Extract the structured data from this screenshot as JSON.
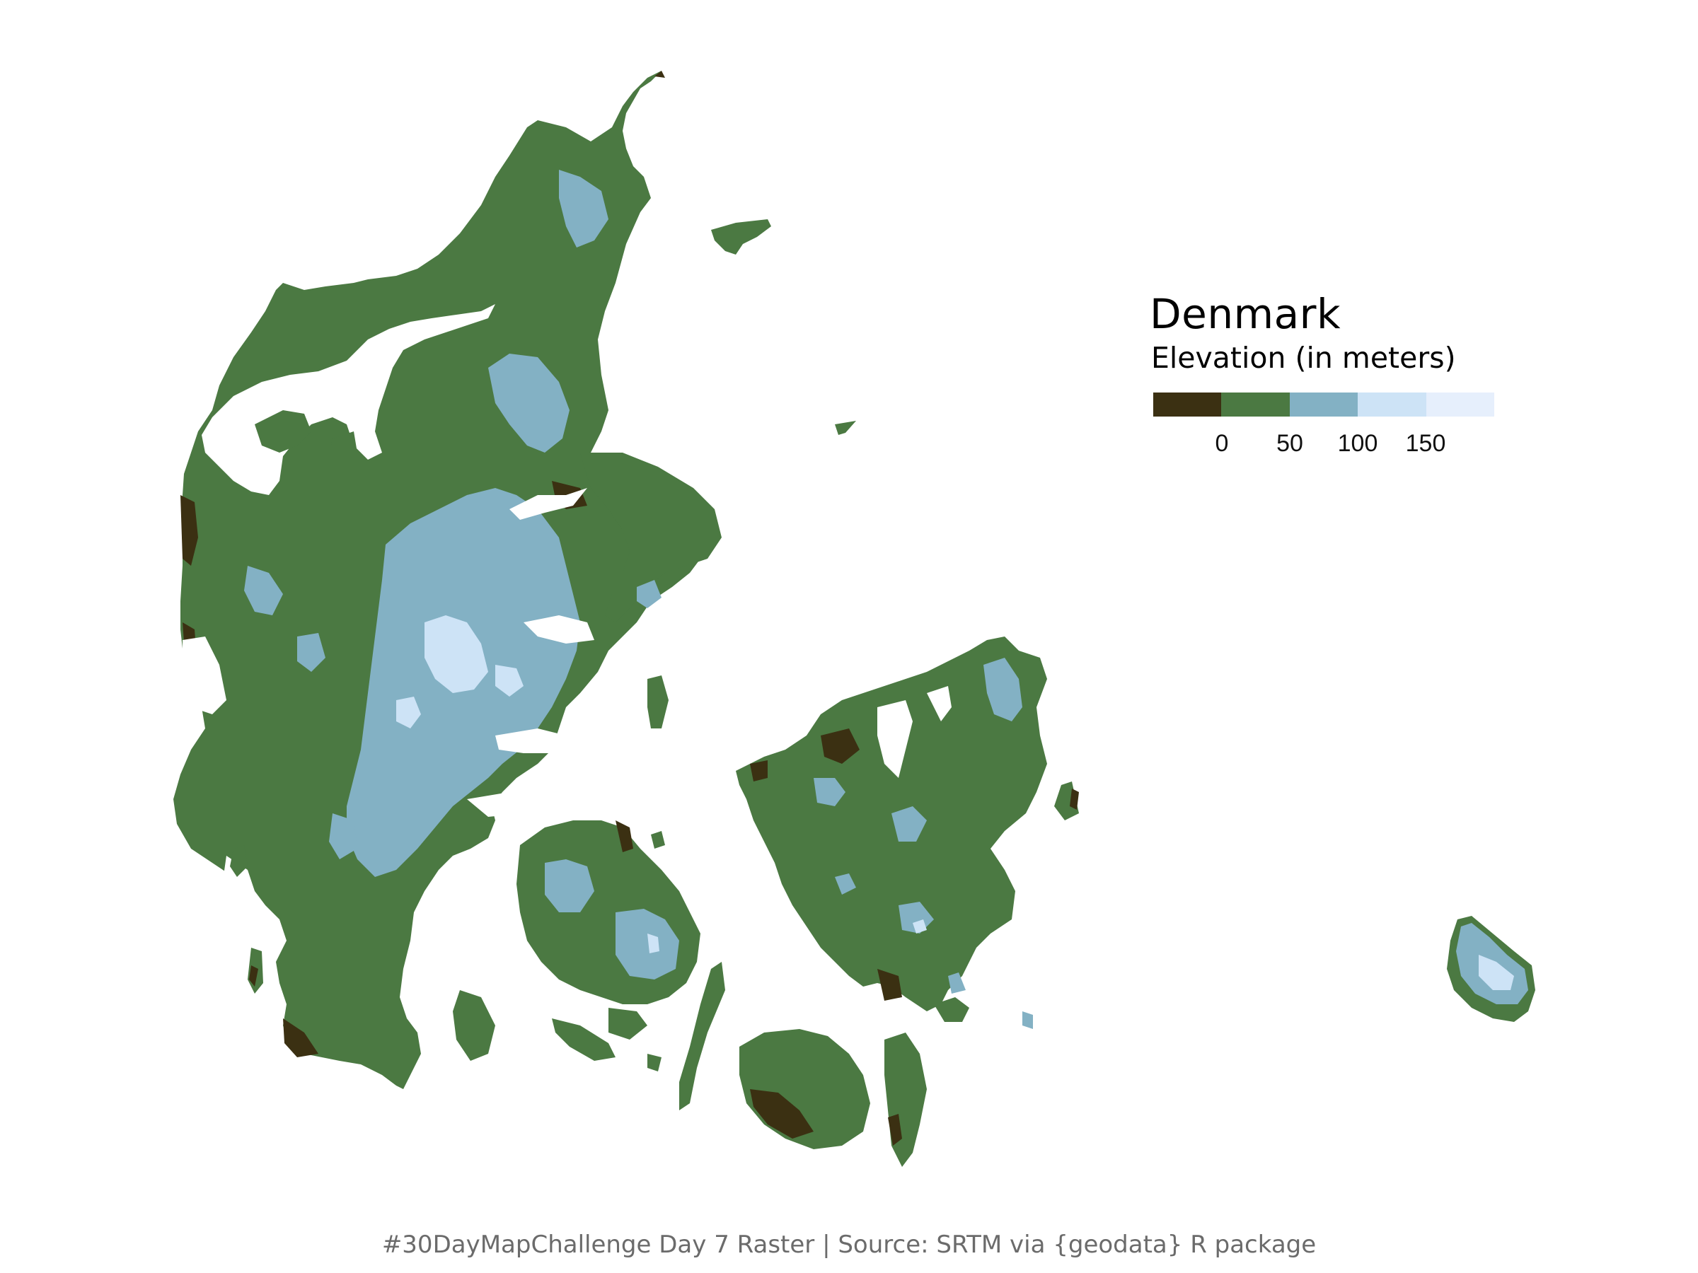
{
  "map": {
    "name": "Denmark elevation raster",
    "colors": {
      "background": "#ffffff",
      "lowland": "#3b3012",
      "low": "#4b7942",
      "mid": "#83b1c4",
      "high": "#cde3f6",
      "highest": "#e6effc"
    }
  },
  "legend": {
    "title": "Denmark",
    "subtitle": "Elevation (in meters)",
    "swatches": [
      "#3b3012",
      "#4b7942",
      "#83b1c4",
      "#cde3f6",
      "#e6effc"
    ],
    "ticks": [
      "0",
      "50",
      "100",
      "150"
    ]
  },
  "caption": "#30DayMapChallenge Day 7 Raster | Source: SRTM via {geodata} R package"
}
